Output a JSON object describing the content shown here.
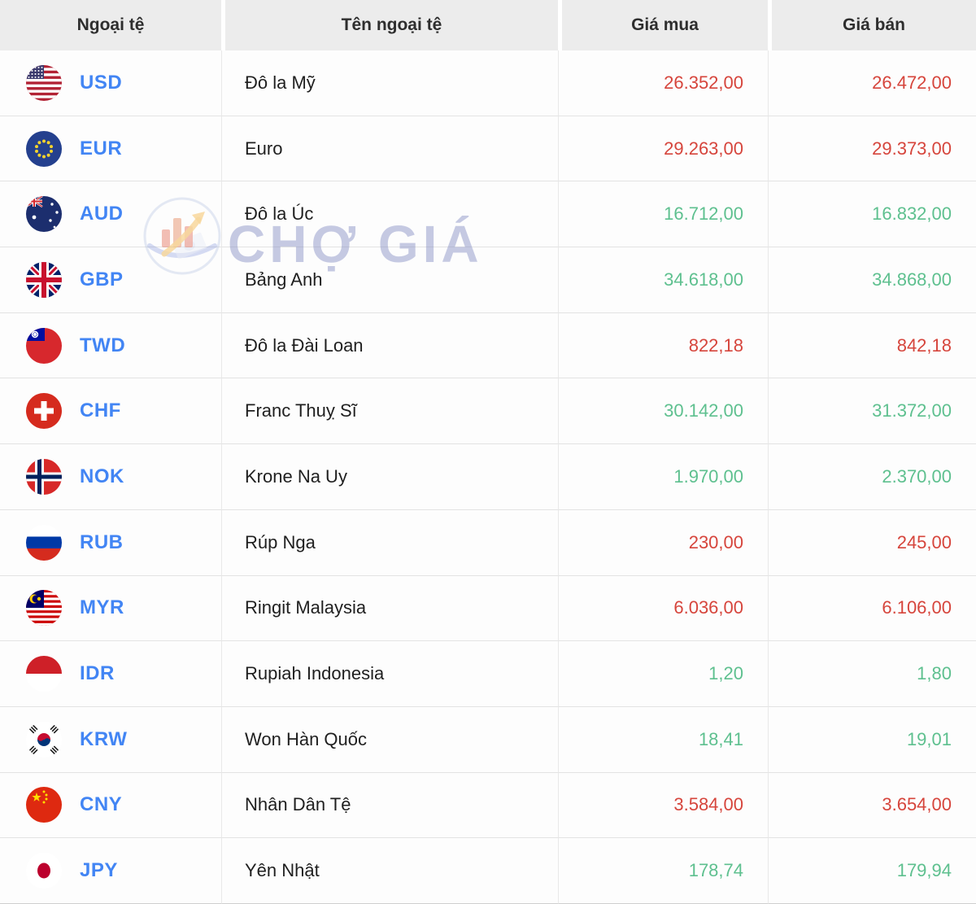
{
  "table": {
    "columns": [
      "Ngoại tệ",
      "Tên ngoại tệ",
      "Giá mua",
      "Giá bán"
    ],
    "rows": [
      {
        "code": "USD",
        "flag": "us",
        "name": "Đô la Mỹ",
        "buy": "26.352,00",
        "sell": "26.472,00",
        "color": "red"
      },
      {
        "code": "EUR",
        "flag": "eu",
        "name": "Euro",
        "buy": "29.263,00",
        "sell": "29.373,00",
        "color": "red"
      },
      {
        "code": "AUD",
        "flag": "au",
        "name": "Đô la Úc",
        "buy": "16.712,00",
        "sell": "16.832,00",
        "color": "green"
      },
      {
        "code": "GBP",
        "flag": "gb",
        "name": "Bảng Anh",
        "buy": "34.618,00",
        "sell": "34.868,00",
        "color": "green"
      },
      {
        "code": "TWD",
        "flag": "tw",
        "name": "Đô la Đài Loan",
        "buy": "822,18",
        "sell": "842,18",
        "color": "red"
      },
      {
        "code": "CHF",
        "flag": "ch",
        "name": "Franc Thuỵ Sĩ",
        "buy": "30.142,00",
        "sell": "31.372,00",
        "color": "green"
      },
      {
        "code": "NOK",
        "flag": "no",
        "name": "Krone Na Uy",
        "buy": "1.970,00",
        "sell": "2.370,00",
        "color": "green"
      },
      {
        "code": "RUB",
        "flag": "ru",
        "name": "Rúp Nga",
        "buy": "230,00",
        "sell": "245,00",
        "color": "red"
      },
      {
        "code": "MYR",
        "flag": "my",
        "name": "Ringit Malaysia",
        "buy": "6.036,00",
        "sell": "6.106,00",
        "color": "red"
      },
      {
        "code": "IDR",
        "flag": "id",
        "name": "Rupiah Indonesia",
        "buy": "1,20",
        "sell": "1,80",
        "color": "green"
      },
      {
        "code": "KRW",
        "flag": "kr",
        "name": "Won Hàn Quốc",
        "buy": "18,41",
        "sell": "19,01",
        "color": "green"
      },
      {
        "code": "CNY",
        "flag": "cn",
        "name": "Nhân Dân Tệ",
        "buy": "3.584,00",
        "sell": "3.654,00",
        "color": "red"
      },
      {
        "code": "JPY",
        "flag": "jp",
        "name": "Yên Nhật",
        "buy": "178,74",
        "sell": "179,94",
        "color": "green"
      }
    ]
  },
  "watermark": {
    "text": "CHỢ GIÁ"
  },
  "colors": {
    "price_up_red": "#d6453c",
    "price_down_green": "#5ec08f",
    "code_blue": "#4285f4",
    "header_bg": "#ececec"
  }
}
